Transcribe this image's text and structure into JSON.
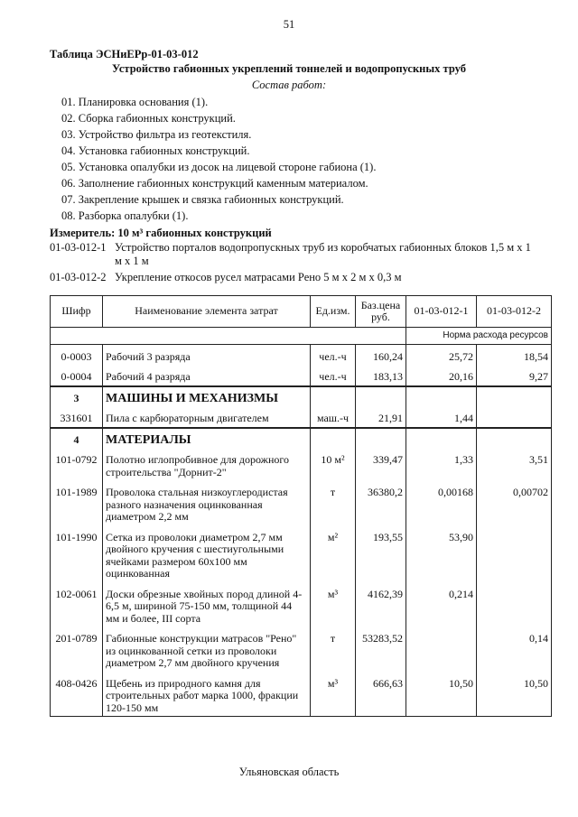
{
  "page_number": "51",
  "table_id": "Таблица  ЭСНиЕРр-01-03-012",
  "title": "Устройство габионных укреплений тоннелей и водопропускных труб",
  "subtitle": "Состав работ:",
  "works": [
    "01. Планировка основания (1).",
    "02. Сборка габионных конструкций.",
    "03. Устройство фильтра из геотекстиля.",
    "04. Установка габионных конструкций.",
    "05. Установка опалубки из досок на лицевой стороне габиона (1).",
    "06. Заполнение габионных конструкций каменным материалом.",
    "07. Закрепление крышек и связка габионных конструкций.",
    "08. Разборка опалубки (1)."
  ],
  "meter": "Измеритель: 10 м³ габионных конструкций",
  "codes": [
    {
      "code": "01-03-012-1",
      "text": "Устройство порталов водопропускных труб из коробчатых габионных блоков 1,5 м х 1 м х 1 м"
    },
    {
      "code": "01-03-012-2",
      "text": "Укрепление откосов русел матрасами Рено 5 м х 2 м х 0,3 м"
    }
  ],
  "table": {
    "header": [
      "Шифр",
      "Наименование элемента затрат",
      "Ед.изм.",
      "Баз.цена руб.",
      "01-03-012-1",
      "01-03-012-2"
    ],
    "norm_label": "Норма расхода ресурсов",
    "rows": [
      {
        "code": "0-0003",
        "name": "Рабочий 3 разряда",
        "unit": "чел.-ч",
        "price": "160,24",
        "v1": "25,72",
        "v2": "18,54"
      },
      {
        "code": "0-0004",
        "name": "Рабочий 4 разряда",
        "unit": "чел.-ч",
        "price": "183,13",
        "v1": "20,16",
        "v2": "9,27"
      },
      {
        "num": "3",
        "heading": "МАШИНЫ И МЕХАНИЗМЫ"
      },
      {
        "code": "331601",
        "name": "Пила с карбюраторным двигателем",
        "unit": "маш.-ч",
        "price": "21,91",
        "v1": "1,44"
      },
      {
        "num": "4",
        "heading": "МАТЕРИАЛЫ"
      },
      {
        "code": "101-0792",
        "name": "Полотно иглопробивное для дорожного строительства \"Дорнит-2\"",
        "unit": "10 м²",
        "price": "339,47",
        "v1": "1,33",
        "v2": "3,51"
      },
      {
        "code": "101-1989",
        "name": "Проволока стальная низкоуглеродистая разного назначения оцинкованная диаметром 2,2 мм",
        "unit": "т",
        "price": "36380,2",
        "v1": "0,00168",
        "v2": "0,00702"
      },
      {
        "code": "101-1990",
        "name": "Сетка из проволоки диаметром 2,7 мм двойного кручения с шестиугольными ячейками размером 60х100 мм оцинкованная",
        "unit": "м²",
        "price": "193,55",
        "v1": "53,90"
      },
      {
        "code": "102-0061",
        "name": "Доски обрезные хвойных пород длиной 4-6,5 м, шириной 75-150 мм, толщиной 44 мм и более, III сорта",
        "unit": "м³",
        "price": "4162,39",
        "v1": "0,214"
      },
      {
        "code": "201-0789",
        "name": "Габионные конструкции матрасов \"Рено\" из оцинкованной сетки из проволоки диаметром 2,7 мм двойного кручения",
        "unit": "т",
        "price": "53283,52",
        "v2": "0,14"
      },
      {
        "code": "408-0426",
        "name": "Щебень из природного камня для строительных работ марка 1000, фракции 120-150 мм",
        "unit": "м³",
        "price": "666,63",
        "v1": "10,50",
        "v2": "10,50"
      }
    ]
  },
  "footer": "Ульяновская область"
}
